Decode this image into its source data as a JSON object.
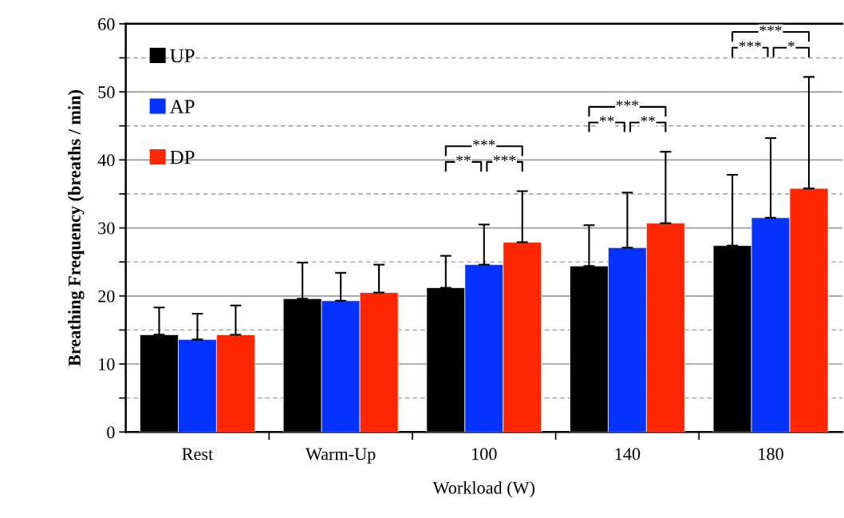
{
  "chart_data": {
    "type": "bar",
    "xlabel": "Workload (W)",
    "ylabel": "Breathing Frequency (breaths / min)",
    "categories": [
      "Rest",
      "Warm-Up",
      "100",
      "140",
      "180"
    ],
    "series": [
      {
        "name": "UP",
        "color": "#000000",
        "values": [
          14.3,
          19.6,
          21.2,
          24.4,
          27.4
        ],
        "errors": [
          [
            14.3,
            18.3
          ],
          [
            19.6,
            24.9
          ],
          [
            21.2,
            25.9
          ],
          [
            24.4,
            30.4
          ],
          [
            27.4,
            37.8
          ]
        ]
      },
      {
        "name": "AP",
        "color": "#0433ff",
        "values": [
          13.6,
          19.3,
          24.6,
          27.1,
          31.5
        ],
        "errors": [
          [
            13.6,
            17.4
          ],
          [
            19.3,
            23.4
          ],
          [
            24.6,
            30.5
          ],
          [
            27.1,
            35.2
          ],
          [
            31.5,
            43.2
          ]
        ]
      },
      {
        "name": "DP",
        "color": "#ff2600",
        "values": [
          14.3,
          20.5,
          27.9,
          30.7,
          35.8
        ],
        "errors": [
          [
            14.3,
            18.6
          ],
          [
            20.5,
            24.6
          ],
          [
            27.9,
            35.4
          ],
          [
            30.7,
            41.2
          ],
          [
            35.8,
            52.2
          ]
        ]
      }
    ],
    "ylim": [
      0,
      60
    ],
    "yticks": [
      0,
      {
        "value": 5,
        "label": null
      },
      10,
      {
        "value": 15,
        "label": null
      },
      20,
      {
        "value": 25,
        "label": null
      },
      30,
      {
        "value": 35,
        "label": null
      },
      40,
      {
        "value": 45,
        "label": null
      },
      50,
      {
        "value": 55,
        "label": null
      },
      60
    ],
    "grid": "y",
    "legend": "top left",
    "annotations": [
      "**",
      "***",
      "***",
      "**",
      "**",
      "***",
      "***",
      "*",
      "***"
    ]
  }
}
